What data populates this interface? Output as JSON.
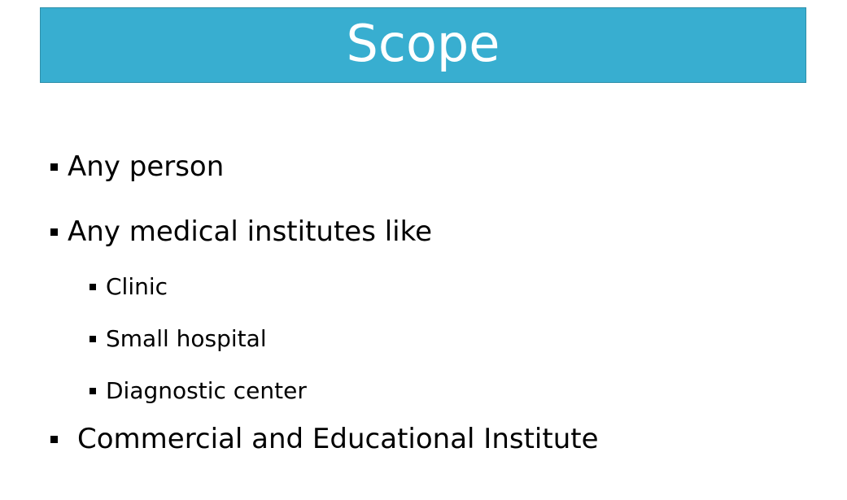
{
  "slide": {
    "title": "Scope",
    "bullets": [
      {
        "text": "Any person"
      },
      {
        "text": "Any medical institutes like",
        "sub_bullets": [
          {
            "text": "Clinic"
          },
          {
            "text": "Small hospital"
          },
          {
            "text": "Diagnostic center"
          }
        ]
      },
      {
        "text": "Commercial and Educational Institute"
      }
    ]
  },
  "colors": {
    "title_bar": "#38aed0",
    "title_text": "#ffffff",
    "body_text": "#000000"
  },
  "icons": {
    "bullet": "square-bullet-icon"
  }
}
